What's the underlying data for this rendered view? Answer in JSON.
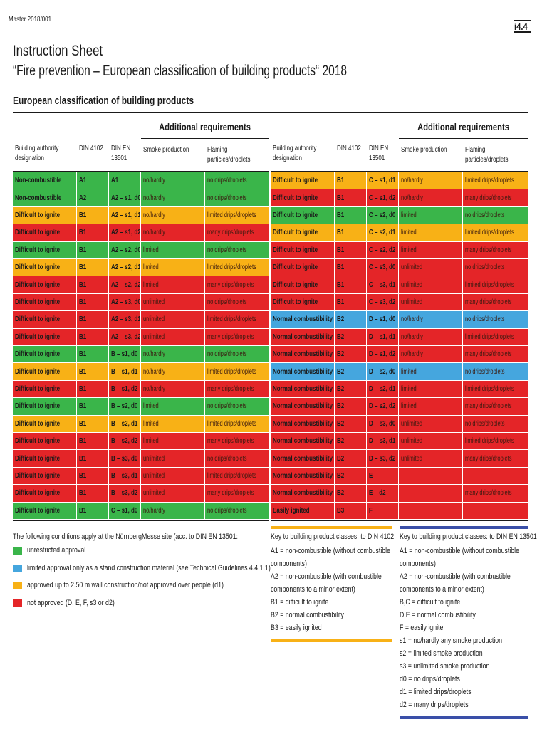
{
  "header": {
    "master": "Master 2018/001",
    "code": "i4.4",
    "title": "Instruction Sheet",
    "subtitle": "“Fire prevention – European classification of building products“ 2018",
    "section": "European classification of building products"
  },
  "table": {
    "group_header": "Additional requirements",
    "columns": [
      "Building authority designation",
      "DIN 4102",
      "DIN EN 13501",
      "Smoke production",
      "Flaming particles/droplets"
    ],
    "left_rows": [
      {
        "color": "#3ab54a",
        "cells": [
          "Non-combustible",
          "A1",
          "A1",
          "no/hardly",
          "no drips/droplets"
        ]
      },
      {
        "color": "#3ab54a",
        "cells": [
          "Non-combustible",
          "A2",
          "A2 – s1, d0",
          "no/hardly",
          "no drips/droplets"
        ]
      },
      {
        "color": "#f8b116",
        "cells": [
          "Difficult to ignite",
          "B1",
          "A2 – s1, d1",
          "no/hardly",
          "limited drips/droplets"
        ]
      },
      {
        "color": "#e42528",
        "cells": [
          "Difficult to ignite",
          "B1",
          "A2 – s1, d2",
          "no/hardly",
          "many drips/droplets"
        ]
      },
      {
        "color": "#3ab54a",
        "cells": [
          "Difficult to ignite",
          "B1",
          "A2 – s2, d0",
          "limited",
          "no drips/droplets"
        ]
      },
      {
        "color": "#f8b116",
        "cells": [
          "Difficult to ignite",
          "B1",
          "A2 – s2, d1",
          "limited",
          "limited drips/droplets"
        ]
      },
      {
        "color": "#e42528",
        "cells": [
          "Difficult to ignite",
          "B1",
          "A2 – s2, d2",
          "limited",
          "many drips/droplets"
        ]
      },
      {
        "color": "#e42528",
        "cells": [
          "Difficult to ignite",
          "B1",
          "A2 – s3, d0",
          "unlimited",
          "no drips/droplets"
        ]
      },
      {
        "color": "#e42528",
        "cells": [
          "Difficult to ignite",
          "B1",
          "A2 – s3, d1",
          "unlimited",
          "limited drips/droplets"
        ]
      },
      {
        "color": "#e42528",
        "cells": [
          "Difficult to ignite",
          "B1",
          "A2 – s3, d2",
          "unlimited",
          "many drips/droplets"
        ]
      },
      {
        "color": "#3ab54a",
        "cells": [
          "Difficult to ignite",
          "B1",
          "B – s1, d0",
          "no/hardly",
          "no drips/droplets"
        ]
      },
      {
        "color": "#f8b116",
        "cells": [
          "Difficult to ignite",
          "B1",
          "B – s1, d1",
          "no/hardly",
          "limited drips/droplets"
        ]
      },
      {
        "color": "#e42528",
        "cells": [
          "Difficult to ignite",
          "B1",
          "B – s1, d2",
          "no/hardly",
          "many drips/droplets"
        ]
      },
      {
        "color": "#3ab54a",
        "cells": [
          "Difficult to ignite",
          "B1",
          "B – s2, d0",
          "limited",
          "no drips/droplets"
        ]
      },
      {
        "color": "#f8b116",
        "cells": [
          "Difficult to ignite",
          "B1",
          "B – s2, d1",
          "limited",
          "limited drips/droplets"
        ]
      },
      {
        "color": "#e42528",
        "cells": [
          "Difficult to ignite",
          "B1",
          "B – s2, d2",
          "limited",
          "many drips/droplets"
        ]
      },
      {
        "color": "#e42528",
        "cells": [
          "Difficult to ignite",
          "B1",
          "B – s3, d0",
          "unlimited",
          "no drips/droplets"
        ]
      },
      {
        "color": "#e42528",
        "cells": [
          "Difficult to ignite",
          "B1",
          "B – s3, d1",
          "unlimited",
          "limited drips/droplets"
        ]
      },
      {
        "color": "#e42528",
        "cells": [
          "Difficult to ignite",
          "B1",
          "B – s3, d2",
          "unlimited",
          "many drips/droplets"
        ]
      },
      {
        "color": "#3ab54a",
        "cells": [
          "Difficult to ignite",
          "B1",
          "C – s1, d0",
          "no/hardly",
          "no drips/droplets"
        ]
      }
    ],
    "right_rows": [
      {
        "color": "#f8b116",
        "cells": [
          "Difficult to ignite",
          "B1",
          "C – s1, d1",
          "no/hardly",
          "limited drips/droplets"
        ]
      },
      {
        "color": "#e42528",
        "cells": [
          "Difficult to ignite",
          "B1",
          "C – s1, d2",
          "no/hardly",
          "many drips/droplets"
        ]
      },
      {
        "color": "#3ab54a",
        "cells": [
          "Difficult to ignite",
          "B1",
          "C – s2, d0",
          "limited",
          "no drips/droplets"
        ]
      },
      {
        "color": "#f8b116",
        "cells": [
          "Difficult to ignite",
          "B1",
          "C – s2, d1",
          "limited",
          "limited drips/droplets"
        ]
      },
      {
        "color": "#e42528",
        "cells": [
          "Difficult to ignite",
          "B1",
          "C – s2, d2",
          "limited",
          "many drips/droplets"
        ]
      },
      {
        "color": "#e42528",
        "cells": [
          "Difficult to ignite",
          "B1",
          "C – s3, d0",
          "unlimited",
          "no drips/droplets"
        ]
      },
      {
        "color": "#e42528",
        "cells": [
          "Difficult to ignite",
          "B1",
          "C – s3, d1",
          "unlimited",
          "limited drips/droplets"
        ]
      },
      {
        "color": "#e42528",
        "cells": [
          "Difficult to ignite",
          "B1",
          "C – s3, d2",
          "unlimited",
          "many drips/droplets"
        ]
      },
      {
        "color": "#45a6de",
        "cells": [
          "Normal combustibility",
          "B2",
          "D – s1, d0",
          "no/hardly",
          "no drips/droplets"
        ]
      },
      {
        "color": "#e42528",
        "cells": [
          "Normal combustibility",
          "B2",
          "D – s1, d1",
          "no/hardly",
          "limited drips/droplets"
        ]
      },
      {
        "color": "#e42528",
        "cells": [
          "Normal combustibility",
          "B2",
          "D – s1, d2",
          "no/hardly",
          "many drips/droplets"
        ]
      },
      {
        "color": "#45a6de",
        "cells": [
          "Normal combustibility",
          "B2",
          "D – s2, d0",
          "limited",
          "no drips/droplets"
        ]
      },
      {
        "color": "#e42528",
        "cells": [
          "Normal combustibility",
          "B2",
          "D – s2, d1",
          "limited",
          "limited drips/droplets"
        ]
      },
      {
        "color": "#e42528",
        "cells": [
          "Normal combustibility",
          "B2",
          "D – s2, d2",
          "limited",
          "many drips/droplets"
        ]
      },
      {
        "color": "#e42528",
        "cells": [
          "Normal combustibility",
          "B2",
          "D – s3, d0",
          "unlimited",
          "no drips/droplets"
        ]
      },
      {
        "color": "#e42528",
        "cells": [
          "Normal combustibility",
          "B2",
          "D – s3, d1",
          "unlimited",
          "limited drips/droplets"
        ]
      },
      {
        "color": "#e42528",
        "cells": [
          "Normal combustibility",
          "B2",
          "D – s3, d2",
          "unlimited",
          "many drips/droplets"
        ]
      },
      {
        "color": "#e42528",
        "cells": [
          "Normal combustibility",
          "B2",
          "E",
          null,
          null
        ]
      },
      {
        "color": "#e42528",
        "cells": [
          "Normal combustibility",
          "B2",
          "E – d2",
          null,
          "many drips/droplets"
        ]
      },
      {
        "color": "#e42528",
        "cells": [
          "Easily ignited",
          "B3",
          "F",
          null,
          null
        ]
      }
    ]
  },
  "conditions": {
    "intro": "The following conditions apply at the NürnbergMesse site (acc. to DIN EN 13501:",
    "items": [
      {
        "color": "#3ab54a",
        "label": "unrestricted approval"
      },
      {
        "color": "#45a6de",
        "label": "limited approval only as a stand construction material (see Technical Guidelines 4.4.1.1)"
      },
      {
        "color": "#f8b116",
        "label": "approved up to 2.50 m wall construction/not approved over people (d1)"
      },
      {
        "color": "#e42528",
        "label": "not approved (D, E, F, s3 or d2)"
      }
    ]
  },
  "key_4102": {
    "title": "Key to building product classes: to DIN 4102",
    "entries": [
      "A1 = non-combustible (without combustible components)",
      "A2 = non-combustible (with combustible components to a minor extent)",
      "B1 = difficult to ignite",
      "B2 = normal combustibility",
      "B3 = easily ignited"
    ]
  },
  "key_13501": {
    "title": "Key to building product classes: to DIN EN 13501",
    "entries": [
      "A1 = non-combustible (without combustible components)",
      "A2 = non-combustible (with combustible components to a minor extent)",
      "B,C = difficult to ignite",
      "D,E = normal combustibility",
      "F = easily ignite",
      "s1 = no/hardly any smoke production",
      "s2 = limited smoke production",
      "s3 = unlimited smoke production",
      "d0 = no drips/droplets",
      "d1 = limited drips/droplets",
      "d2 = many drips/droplets"
    ]
  }
}
